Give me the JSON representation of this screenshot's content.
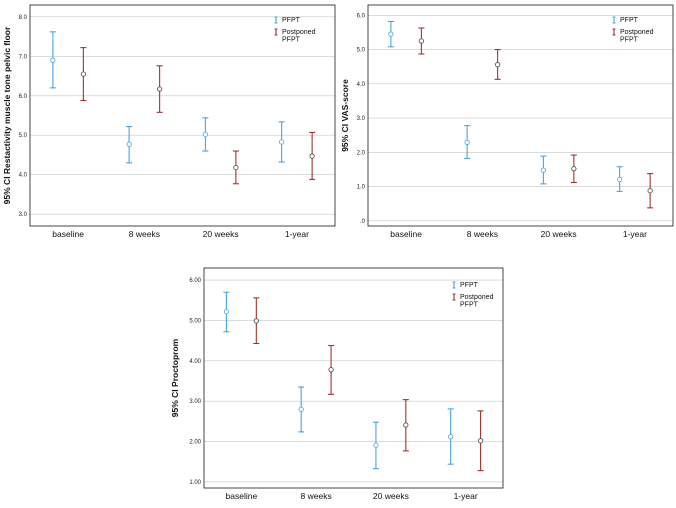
{
  "chart_data": [
    {
      "type": "errorbar",
      "ylabel": "95% CI Restactivity muscle tone pelvic floor",
      "categories": [
        "baseline",
        "8 weeks",
        "20 weeks",
        "1-year"
      ],
      "ylim": [
        2.7,
        8.3
      ],
      "yticks": [
        "3.0",
        "4.0",
        "5.0",
        "6.0",
        "7.0",
        "8.0"
      ],
      "ytick_values": [
        3,
        4,
        5,
        6,
        7,
        8
      ],
      "legend": [
        {
          "label": "PFPT",
          "color": "#4aa3df"
        },
        {
          "label": "Postponed PFPT",
          "color": "#a5322a"
        }
      ],
      "series": [
        {
          "name": "PFPT",
          "color": "#4aa3df",
          "means": [
            6.9,
            4.77,
            5.02,
            4.83
          ],
          "lower": [
            6.2,
            4.3,
            4.6,
            4.32
          ],
          "upper": [
            7.62,
            5.22,
            5.44,
            5.34
          ]
        },
        {
          "name": "Postponed PFPT",
          "color": "#a5322a",
          "means": [
            6.55,
            6.17,
            4.18,
            4.47
          ],
          "lower": [
            5.88,
            5.58,
            3.77,
            3.88
          ],
          "upper": [
            7.22,
            6.76,
            4.6,
            5.07
          ]
        }
      ]
    },
    {
      "type": "errorbar",
      "ylabel": "95% CI VAS-score",
      "categories": [
        "baseline",
        "8 weeks",
        "20 weeks",
        "1-year"
      ],
      "ylim": [
        -0.15,
        6.3
      ],
      "yticks": [
        ".0",
        "1.0",
        "2.0",
        "3.0",
        "4.0",
        "5.0",
        "6.0"
      ],
      "ytick_values": [
        0,
        1,
        2,
        3,
        4,
        5,
        6
      ],
      "legend": [
        {
          "label": "PFPT",
          "color": "#4aa3df"
        },
        {
          "label": "Postponed PFPT",
          "color": "#a5322a"
        }
      ],
      "series": [
        {
          "name": "PFPT",
          "color": "#4aa3df",
          "means": [
            5.45,
            2.29,
            1.48,
            1.21
          ],
          "lower": [
            5.08,
            1.82,
            1.08,
            0.86
          ],
          "upper": [
            5.82,
            2.78,
            1.89,
            1.58
          ]
        },
        {
          "name": "Postponed PFPT",
          "color": "#a5322a",
          "means": [
            5.25,
            4.56,
            1.52,
            0.88
          ],
          "lower": [
            4.87,
            4.13,
            1.12,
            0.38
          ],
          "upper": [
            5.63,
            5.0,
            1.92,
            1.38
          ]
        }
      ]
    },
    {
      "type": "errorbar",
      "ylabel": "95% CI Proctoprom",
      "categories": [
        "baseline",
        "8 weeks",
        "20 weeks",
        "1-year"
      ],
      "ylim": [
        0.85,
        6.3
      ],
      "yticks": [
        "1.00",
        "2.00",
        "3.00",
        "4.00",
        "5.00",
        "6.00"
      ],
      "ytick_values": [
        1,
        2,
        3,
        4,
        5,
        6
      ],
      "legend": [
        {
          "label": "PFPT",
          "color": "#4aa3df"
        },
        {
          "label": "Postponed PFPT",
          "color": "#a5322a"
        }
      ],
      "series": [
        {
          "name": "PFPT",
          "color": "#4aa3df",
          "means": [
            5.22,
            2.8,
            1.91,
            2.12
          ],
          "lower": [
            4.72,
            2.24,
            1.33,
            1.44
          ],
          "upper": [
            5.7,
            3.35,
            2.48,
            2.81
          ]
        },
        {
          "name": "Postponed PFPT",
          "color": "#a5322a",
          "means": [
            4.99,
            3.78,
            2.41,
            2.02
          ],
          "lower": [
            4.43,
            3.17,
            1.77,
            1.28
          ],
          "upper": [
            5.56,
            4.38,
            3.04,
            2.76
          ]
        }
      ]
    }
  ]
}
